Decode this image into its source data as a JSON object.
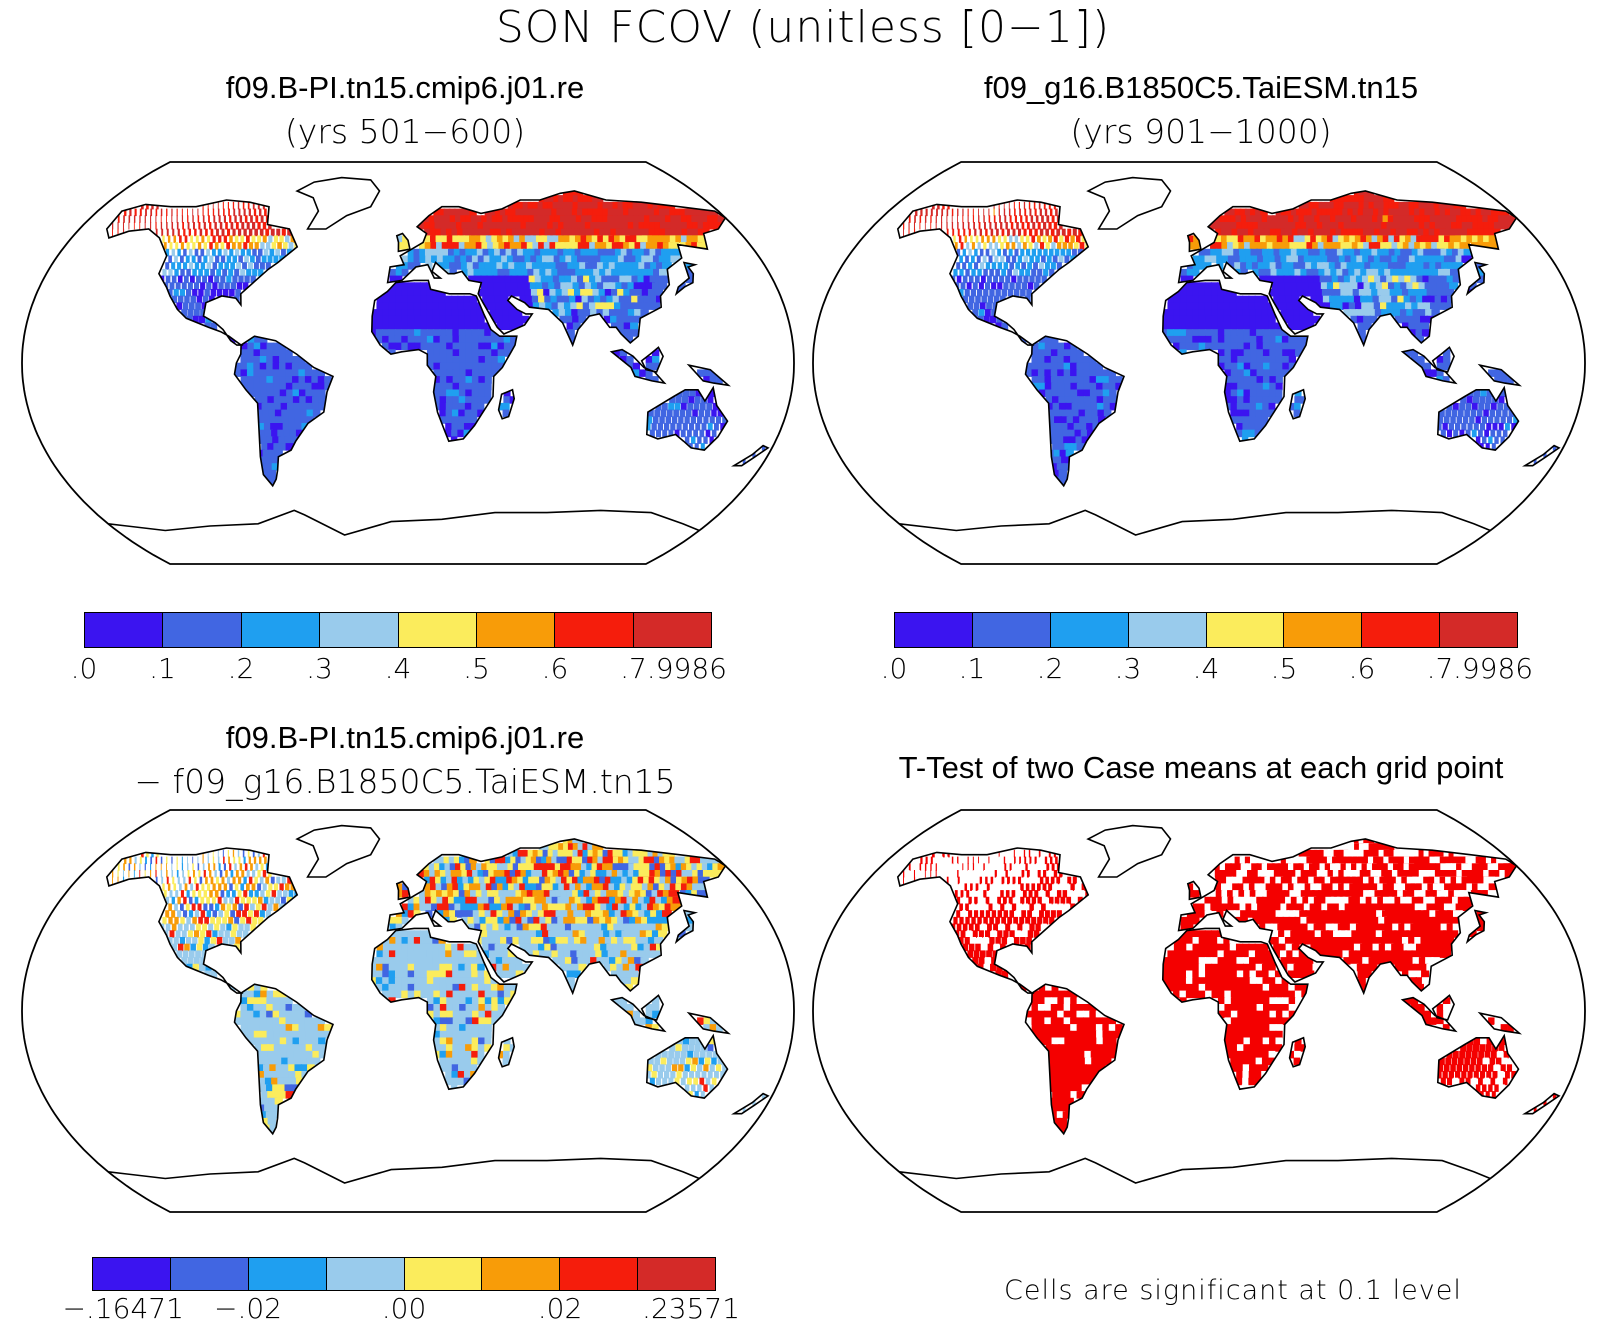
{
  "figure": {
    "title": "SON FCOV (unitless [0−1])"
  },
  "panels": [
    {
      "title": "f09.B-PI.tn15.cmip6.j01.re",
      "subtitle": "(yrs 501−600)",
      "field": "case"
    },
    {
      "title": "f09_g16.B1850C5.TaiESM.tn15",
      "subtitle": "(yrs 901−1000)",
      "field": "case"
    },
    {
      "title": "f09.B-PI.tn15.cmip6.j01.re",
      "subtitle": "− f09_g16.B1850C5.TaiESM.tn15",
      "field": "difference"
    },
    {
      "title": "T-Test of two Case means at each grid point",
      "subtitle": "",
      "field": "ttest"
    }
  ],
  "colorbars": {
    "case": {
      "colors": [
        "#3b14f0",
        "#4166e2",
        "#1f9ff0",
        "#99cbec",
        "#fbec5c",
        "#f89c08",
        "#f51d0c",
        "#d42a28"
      ],
      "ticks": [
        ".0",
        ".1",
        ".2",
        ".3",
        ".4",
        ".5",
        ".6",
        ".7",
        ".9986"
      ]
    },
    "difference": {
      "colors": [
        "#3b14f0",
        "#4166e2",
        "#1f9ff0",
        "#99cbec",
        "#fbec5c",
        "#f89c08",
        "#f51d0c",
        "#d42a28"
      ],
      "ticks": [
        "−.16471",
        "−.02",
        ".00",
        ".02",
        ".23571"
      ]
    }
  },
  "ttest": {
    "note": "Cells are significant at 0.1 level",
    "significant_color": "#f40000"
  }
}
